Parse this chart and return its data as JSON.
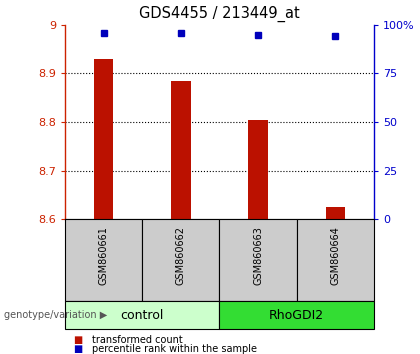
{
  "title": "GDS4455 / 213449_at",
  "samples": [
    "GSM860661",
    "GSM860662",
    "GSM860663",
    "GSM860664"
  ],
  "transformed_counts": [
    8.93,
    8.885,
    8.805,
    8.625
  ],
  "percentile_ranks": [
    96,
    96,
    95,
    94
  ],
  "ylim_left": [
    8.6,
    9.0
  ],
  "ylim_right": [
    0,
    100
  ],
  "yticks_left": [
    8.6,
    8.7,
    8.8,
    8.9,
    9.0
  ],
  "ytick_left_labels": [
    "8.6",
    "8.7",
    "8.8",
    "8.9",
    "9"
  ],
  "yticks_right": [
    0,
    25,
    50,
    75,
    100
  ],
  "ytick_right_labels": [
    "0",
    "25",
    "50",
    "75",
    "100%"
  ],
  "dotted_lines": [
    8.7,
    8.8,
    8.9
  ],
  "bar_color": "#bb1100",
  "dot_color": "#0000bb",
  "groups": [
    {
      "label": "control",
      "samples": [
        0,
        1
      ],
      "color": "#ccffcc"
    },
    {
      "label": "RhoGDI2",
      "samples": [
        2,
        3
      ],
      "color": "#33dd33"
    }
  ],
  "left_axis_color": "#cc2200",
  "right_axis_color": "#0000cc",
  "bar_width": 0.25,
  "sample_label_bg": "#cccccc",
  "legend_red_label": "transformed count",
  "legend_blue_label": "percentile rank within the sample",
  "genotype_label": "genotype/variation"
}
